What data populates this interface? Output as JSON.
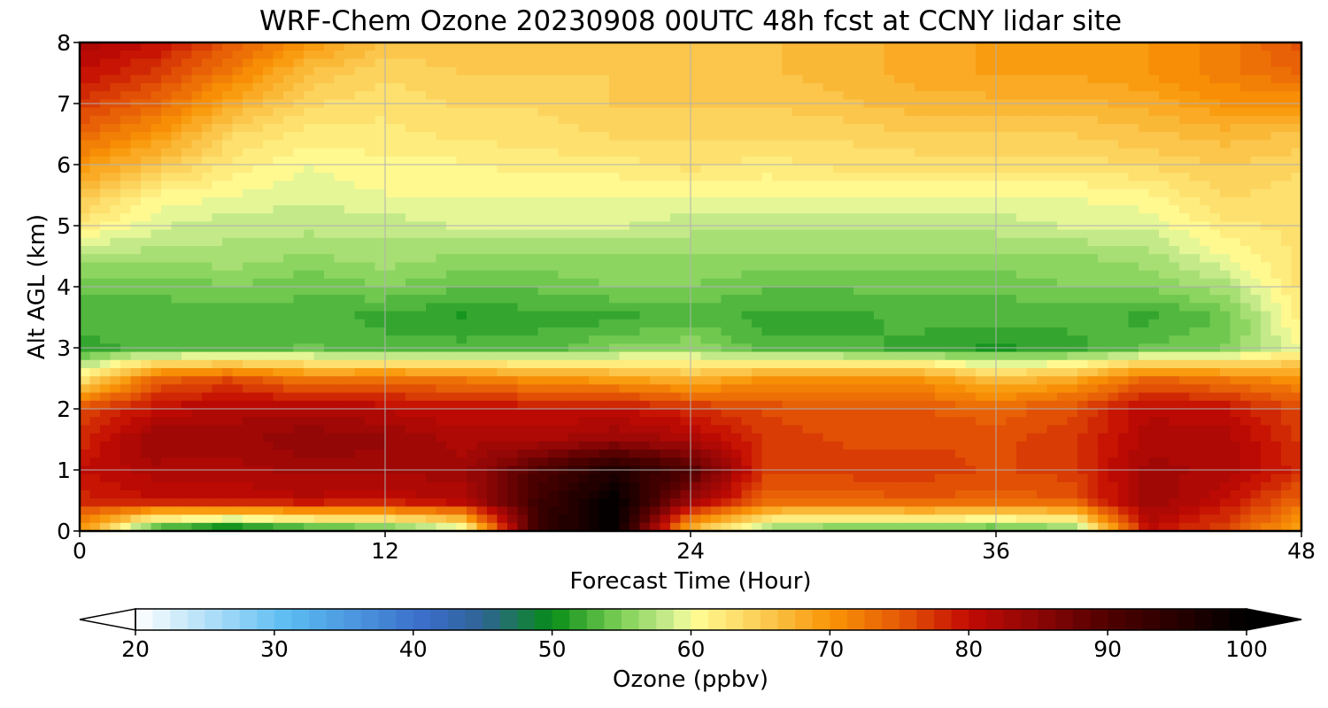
{
  "chart_data": {
    "type": "heatmap",
    "title": "WRF-Chem Ozone  20230908 00UTC 48h fcst at CCNY lidar site",
    "xlabel": "Forecast Time (Hour)",
    "ylabel": "Alt AGL (km)",
    "xlim": [
      0,
      48
    ],
    "ylim": [
      0,
      8
    ],
    "xticks": [
      "0",
      "12",
      "24",
      "36",
      "48"
    ],
    "yticks": [
      "0",
      "1",
      "2",
      "3",
      "4",
      "5",
      "6",
      "7",
      "8"
    ],
    "grid": true,
    "x": [
      0,
      3,
      6,
      9,
      12,
      15,
      18,
      21,
      24,
      27,
      30,
      33,
      36,
      39,
      42,
      45,
      48
    ],
    "y": [
      0,
      0.5,
      1,
      1.5,
      2,
      2.5,
      3,
      3.5,
      4,
      4.5,
      5,
      5.5,
      6,
      6.5,
      7,
      7.5,
      8
    ],
    "z": [
      [
        70,
        50,
        46,
        50,
        52,
        57,
        93,
        100,
        66,
        55,
        53,
        53,
        52,
        54,
        80,
        76,
        68
      ],
      [
        78,
        80,
        80,
        81,
        80,
        82,
        92,
        100,
        84,
        74,
        74,
        75,
        74,
        75,
        84,
        80,
        74
      ],
      [
        80,
        82,
        82,
        83,
        83,
        83,
        90,
        96,
        90,
        77,
        77,
        77,
        76,
        77,
        83,
        82,
        78
      ],
      [
        78,
        84,
        83,
        85,
        84,
        82,
        82,
        84,
        82,
        77,
        76,
        76,
        76,
        77,
        82,
        82,
        77
      ],
      [
        76,
        80,
        82,
        82,
        81,
        80,
        80,
        80,
        78,
        76,
        75,
        75,
        74,
        76,
        81,
        80,
        76
      ],
      [
        62,
        74,
        76,
        72,
        73,
        72,
        70,
        69,
        67,
        70,
        70,
        70,
        66,
        68,
        74,
        72,
        70
      ],
      [
        52,
        53,
        53,
        54,
        53,
        53,
        53,
        55,
        56,
        53,
        53,
        52,
        51,
        52,
        54,
        55,
        60
      ],
      [
        53,
        53,
        53,
        53,
        52,
        51,
        52,
        52,
        53,
        52,
        52,
        53,
        53,
        53,
        52,
        54,
        62
      ],
      [
        54,
        54,
        55,
        54,
        55,
        54,
        54,
        55,
        55,
        54,
        54,
        54,
        54,
        55,
        55,
        57,
        63
      ],
      [
        57,
        57,
        57,
        56,
        57,
        56,
        56,
        56,
        56,
        56,
        56,
        56,
        56,
        56,
        57,
        60,
        63
      ],
      [
        62,
        59,
        58,
        58,
        58,
        59,
        59,
        59,
        58,
        58,
        58,
        58,
        58,
        59,
        59,
        62,
        63
      ],
      [
        66,
        61,
        60,
        59,
        60,
        60,
        60,
        60,
        60,
        60,
        60,
        60,
        60,
        60,
        61,
        64,
        63
      ],
      [
        70,
        66,
        62,
        60,
        61,
        61,
        62,
        62,
        63,
        62,
        63,
        63,
        63,
        63,
        64,
        65,
        64
      ],
      [
        74,
        70,
        64,
        62,
        62,
        63,
        63,
        64,
        64,
        64,
        64,
        65,
        65,
        65,
        66,
        67,
        66
      ],
      [
        77,
        74,
        68,
        64,
        63,
        64,
        64,
        65,
        65,
        65,
        66,
        67,
        67,
        67,
        68,
        70,
        70
      ],
      [
        80,
        77,
        72,
        66,
        64,
        65,
        65,
        65,
        66,
        66,
        67,
        68,
        69,
        69,
        70,
        72,
        74
      ],
      [
        82,
        80,
        75,
        70,
        66,
        66,
        66,
        66,
        66,
        66,
        67,
        68,
        69,
        69,
        70,
        72,
        76
      ]
    ],
    "colorbar": {
      "label": "Ozone  (ppbv)",
      "min": 20,
      "max": 100,
      "ticks": [
        "20",
        "30",
        "40",
        "50",
        "60",
        "70",
        "80",
        "90",
        "100"
      ],
      "extend": "both",
      "levels": 64,
      "colormap": [
        {
          "v": 20,
          "c": "#ffffff"
        },
        {
          "v": 31,
          "c": "#5bbcf2"
        },
        {
          "v": 41,
          "c": "#3a6cc8"
        },
        {
          "v": 45,
          "c": "#2f6494"
        },
        {
          "v": 50,
          "c": "#078c17"
        },
        {
          "v": 55,
          "c": "#7fd057"
        },
        {
          "v": 59,
          "c": "#d6f097"
        },
        {
          "v": 60,
          "c": "#ffff98"
        },
        {
          "v": 65,
          "c": "#fbcd55"
        },
        {
          "v": 70,
          "c": "#f99506"
        },
        {
          "v": 75,
          "c": "#e65a06"
        },
        {
          "v": 80,
          "c": "#c20a02"
        },
        {
          "v": 85,
          "c": "#8c0606"
        },
        {
          "v": 90,
          "c": "#500000"
        },
        {
          "v": 100,
          "c": "#000000"
        }
      ]
    }
  }
}
